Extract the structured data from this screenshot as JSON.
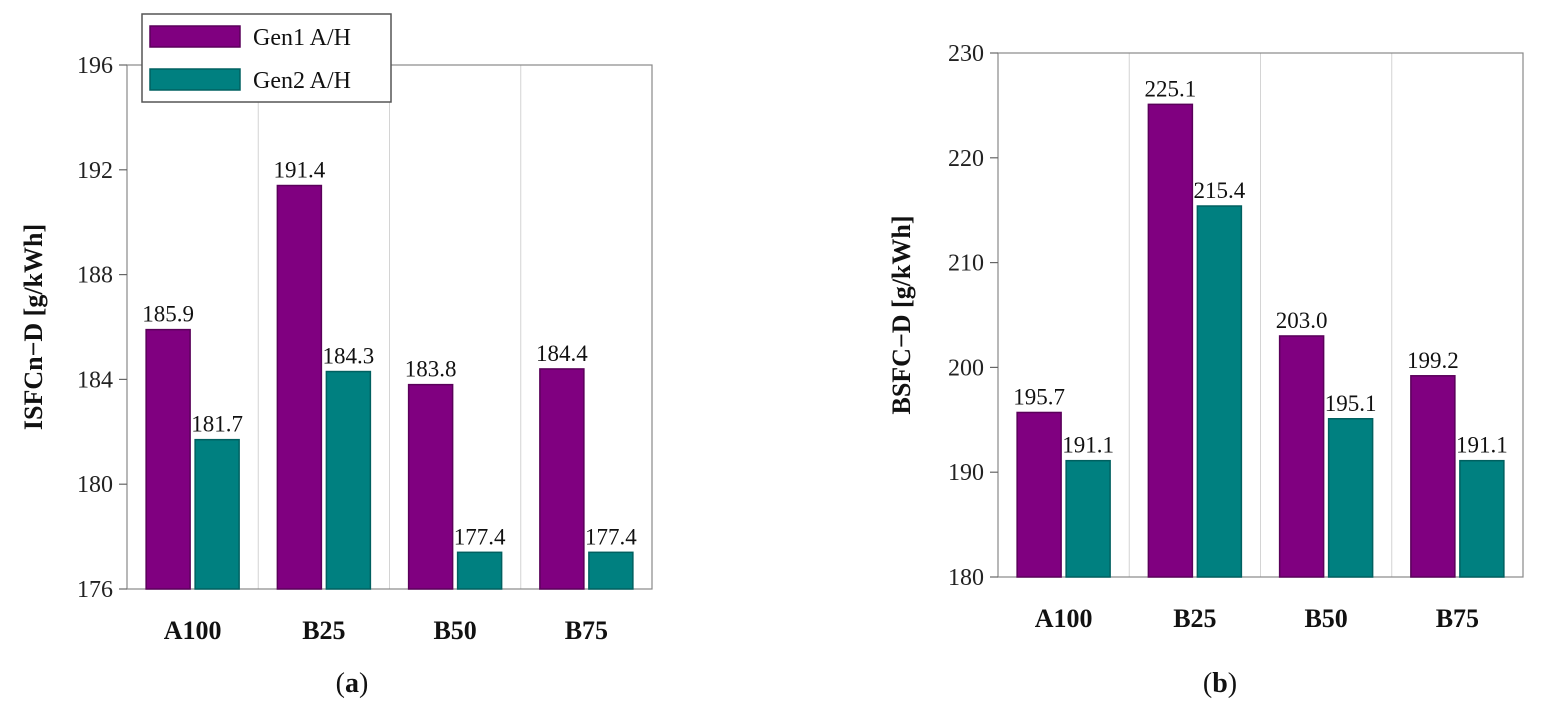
{
  "colors": {
    "gen1": "#800080",
    "gen2": "#008080",
    "gen1_edge": "#5a005a",
    "gen2_edge": "#006060"
  },
  "legend": {
    "items": [
      "Gen1 A/H",
      "Gen2 A/H"
    ]
  },
  "chart_data": [
    {
      "type": "bar",
      "caption": {
        "open": "(",
        "letter": "a",
        "close": ")"
      },
      "ylabel": "ISFCn−D [g/kWh]",
      "xlabel": "",
      "ylim": [
        176,
        196
      ],
      "yticks": [
        176,
        180,
        184,
        188,
        192,
        196
      ],
      "categories": [
        "A100",
        "B25",
        "B50",
        "B75"
      ],
      "series": [
        {
          "name": "Gen1 A/H",
          "values": [
            185.9,
            191.4,
            183.8,
            184.4
          ],
          "labels": [
            "185.9",
            "191.4",
            "183.8",
            "184.4"
          ]
        },
        {
          "name": "Gen2 A/H",
          "values": [
            181.7,
            184.3,
            177.4,
            177.4
          ],
          "labels": [
            "181.7",
            "184.3",
            "177.4",
            "177.4"
          ]
        }
      ]
    },
    {
      "type": "bar",
      "caption": {
        "open": "(",
        "letter": "b",
        "close": ")"
      },
      "ylabel": "BSFC−D [g/kWh]",
      "xlabel": "",
      "ylim": [
        180,
        230
      ],
      "yticks": [
        180,
        190,
        200,
        210,
        220,
        230
      ],
      "categories": [
        "A100",
        "B25",
        "B50",
        "B75"
      ],
      "series": [
        {
          "name": "Gen1 A/H",
          "values": [
            195.7,
            225.1,
            203.0,
            199.2
          ],
          "labels": [
            "195.7",
            "225.1",
            "203.0",
            "199.2"
          ]
        },
        {
          "name": "Gen2 A/H",
          "values": [
            191.1,
            215.4,
            195.1,
            191.1
          ],
          "labels": [
            "191.1",
            "215.4",
            "195.1",
            "191.1"
          ]
        }
      ]
    }
  ]
}
